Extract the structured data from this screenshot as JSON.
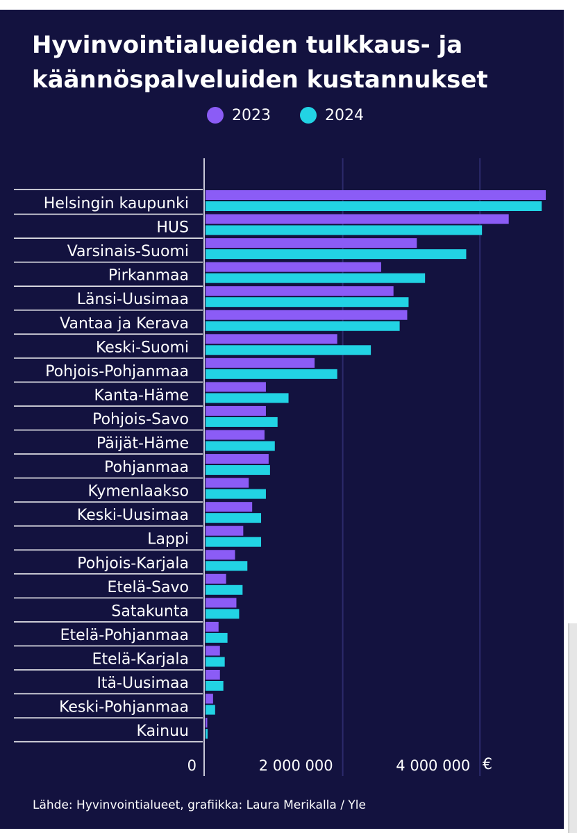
{
  "chart_data": {
    "type": "bar",
    "orientation": "horizontal",
    "title_lines": [
      "Hyvinvointialueiden tulkkaus- ja",
      "käännöspalveluiden kustannukset"
    ],
    "categories": [
      "Helsingin kaupunki",
      "HUS",
      "Varsinais-Suomi",
      "Pirkanmaa",
      "Länsi-Uusimaa",
      "Vantaa ja Kerava",
      "Keski-Suomi",
      "Pohjois-Pohjanmaa",
      "Kanta-Häme",
      "Pohjois-Savo",
      "Päijät-Häme",
      "Pohjanmaa",
      "Kymenlaakso",
      "Keski-Uusimaa",
      "Lappi",
      "Pohjois-Karjala",
      "Etelä-Savo",
      "Satakunta",
      "Etelä-Pohjanmaa",
      "Etelä-Karjala",
      "Itä-Uusimaa",
      "Keski-Pohjanmaa",
      "Kainuu"
    ],
    "series": [
      {
        "name": "2023",
        "color": "#8b5cf6",
        "values": [
          4960000,
          4420000,
          3080000,
          2560000,
          2740000,
          2940000,
          1920000,
          1590000,
          880000,
          880000,
          860000,
          920000,
          630000,
          680000,
          550000,
          430000,
          300000,
          450000,
          190000,
          210000,
          210000,
          110000,
          25000
        ]
      },
      {
        "name": "2024",
        "color": "#22d3e4",
        "values": [
          4900000,
          4030000,
          3800000,
          3200000,
          2960000,
          2830000,
          2410000,
          1920000,
          1210000,
          1050000,
          1010000,
          940000,
          880000,
          810000,
          810000,
          610000,
          540000,
          490000,
          320000,
          280000,
          260000,
          140000,
          30000
        ]
      }
    ],
    "x_ticks": [
      {
        "value": 0,
        "label": "0"
      },
      {
        "value": 2000000,
        "label": "2 000 000"
      },
      {
        "value": 4000000,
        "label": "4 000 000"
      }
    ],
    "unit": "€",
    "xlim": [
      0,
      5000000
    ],
    "legend_position": "top-center",
    "grid": true
  },
  "source": "Lähde: Hyvinvointialueet, grafiikka: Laura Merikalla / Yle",
  "colors": {
    "background": "#13123f",
    "gridline": "#2c2a6b",
    "separator": "#ffffff",
    "text": "#ffffff"
  }
}
